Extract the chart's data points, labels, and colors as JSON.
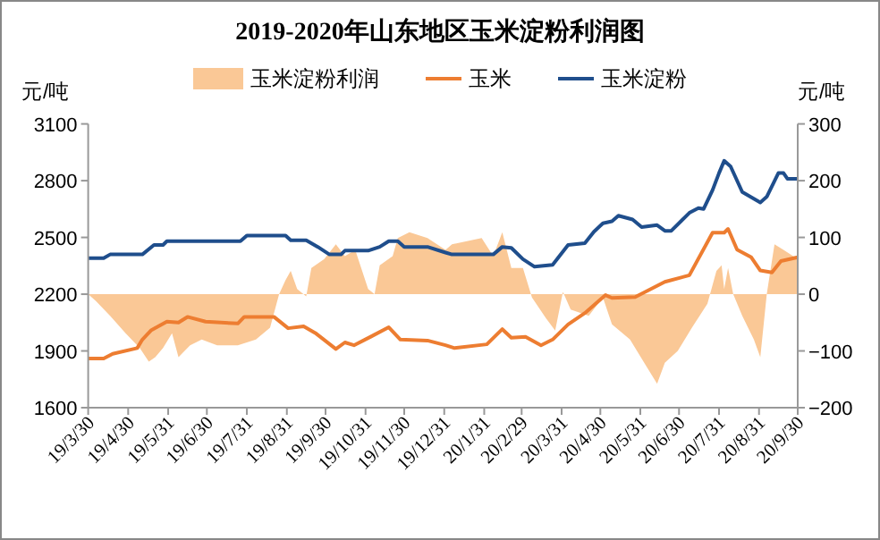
{
  "chart_data": {
    "type": "line",
    "title": "2019-2020年山东地区玉米淀粉利润图",
    "ylabel": "元/吨",
    "y2label": "元/吨",
    "legend": "top",
    "grid": false,
    "xlim": [
      "2019-03-30",
      "2020-09-30"
    ],
    "xticks": [
      {
        "value": "2019-03-30",
        "label": "19/3/30"
      },
      {
        "value": "2019-04-30",
        "label": "19/4/30"
      },
      {
        "value": "2019-05-31",
        "label": "19/5/31"
      },
      {
        "value": "2019-06-30",
        "label": "19/6/30"
      },
      {
        "value": "2019-07-31",
        "label": "19/7/31"
      },
      {
        "value": "2019-08-31",
        "label": "19/8/31"
      },
      {
        "value": "2019-09-30",
        "label": "19/9/30"
      },
      {
        "value": "2019-10-31",
        "label": "19/10/31"
      },
      {
        "value": "2019-11-30",
        "label": "19/11/30"
      },
      {
        "value": "2019-12-31",
        "label": "19/12/31"
      },
      {
        "value": "2020-01-31",
        "label": "20/1/31"
      },
      {
        "value": "2020-02-29",
        "label": "20/2/29"
      },
      {
        "value": "2020-03-31",
        "label": "20/3/31"
      },
      {
        "value": "2020-04-30",
        "label": "20/4/30"
      },
      {
        "value": "2020-05-31",
        "label": "20/5/31"
      },
      {
        "value": "2020-06-30",
        "label": "20/6/30"
      },
      {
        "value": "2020-07-31",
        "label": "20/7/31"
      },
      {
        "value": "2020-08-31",
        "label": "20/8/31"
      },
      {
        "value": "2020-09-30",
        "label": "20/9/30"
      }
    ],
    "ylim": [
      1600,
      3100
    ],
    "yticks": [
      1600,
      1900,
      2200,
      2500,
      2800,
      3100
    ],
    "y2lim": [
      -200,
      300
    ],
    "y2ticks": [
      -200,
      -100,
      0,
      100,
      200,
      300
    ],
    "series": [
      {
        "name": "玉米淀粉利润",
        "type": "area",
        "axis": "y2",
        "color": "#fac896",
        "x": [
          "2019-03-30",
          "2019-04-05",
          "2019-04-16",
          "2019-04-28",
          "2019-05-09",
          "2019-05-16",
          "2019-05-21",
          "2019-05-27",
          "2019-06-03",
          "2019-06-08",
          "2019-06-17",
          "2019-06-26",
          "2019-07-08",
          "2019-07-24",
          "2019-08-07",
          "2019-08-18",
          "2019-08-25",
          "2019-08-30",
          "2019-09-03",
          "2019-09-08",
          "2019-09-15",
          "2019-09-19",
          "2019-09-29",
          "2019-10-08",
          "2019-10-15",
          "2019-10-23",
          "2019-11-02",
          "2019-11-07",
          "2019-11-11",
          "2019-11-21",
          "2019-11-25",
          "2019-12-04",
          "2019-12-18",
          "2020-01-01",
          "2020-01-06",
          "2020-01-29",
          "2020-02-07",
          "2020-02-14",
          "2020-02-21",
          "2020-03-01",
          "2020-03-08",
          "2020-03-19",
          "2020-03-26",
          "2020-04-01",
          "2020-04-07",
          "2020-04-21",
          "2020-05-02",
          "2020-05-09",
          "2020-05-23",
          "2020-06-03",
          "2020-06-13",
          "2020-06-19",
          "2020-06-29",
          "2020-07-10",
          "2020-07-22",
          "2020-07-29",
          "2020-08-02",
          "2020-08-04",
          "2020-08-07",
          "2020-08-11",
          "2020-08-18",
          "2020-08-27",
          "2020-09-01",
          "2020-09-06",
          "2020-09-12",
          "2020-09-19",
          "2020-09-30"
        ],
        "values": [
          0,
          -12,
          -38,
          -69,
          -95,
          -119,
          -111,
          -95,
          -69,
          -111,
          -90,
          -80,
          -90,
          -90,
          -80,
          -59,
          0,
          25,
          41,
          9,
          -4,
          46,
          62,
          88,
          67,
          78,
          9,
          0,
          51,
          67,
          99,
          109,
          99,
          78,
          88,
          99,
          67,
          109,
          46,
          46,
          -6,
          -43,
          -64,
          4,
          -27,
          -38,
          -6,
          -53,
          -80,
          -121,
          -158,
          -121,
          -100,
          -59,
          -17,
          41,
          51,
          9,
          46,
          0,
          -38,
          -80,
          -111,
          0,
          88,
          78,
          62
        ]
      },
      {
        "name": "玉米",
        "type": "line",
        "color": "#ed7d31",
        "x": [
          "2019-03-30",
          "2019-04-11",
          "2019-04-18",
          "2019-05-07",
          "2019-05-11",
          "2019-05-18",
          "2019-05-30",
          "2019-06-08",
          "2019-06-15",
          "2019-06-29",
          "2019-07-24",
          "2019-07-29",
          "2019-08-21",
          "2019-09-01",
          "2019-09-13",
          "2019-09-22",
          "2019-10-08",
          "2019-10-15",
          "2019-10-22",
          "2019-11-04",
          "2019-11-18",
          "2019-11-27",
          "2019-12-18",
          "2020-01-01",
          "2020-01-08",
          "2020-02-02",
          "2020-02-14",
          "2020-02-21",
          "2020-03-03",
          "2020-03-15",
          "2020-03-24",
          "2020-04-05",
          "2020-04-18",
          "2020-05-04",
          "2020-05-09",
          "2020-05-27",
          "2020-06-19",
          "2020-07-08",
          "2020-07-26",
          "2020-08-04",
          "2020-08-07",
          "2020-08-14",
          "2020-08-25",
          "2020-09-01",
          "2020-09-10",
          "2020-09-17",
          "2020-09-30"
        ],
        "values": [
          1860,
          1860,
          1885,
          1915,
          1960,
          2010,
          2055,
          2050,
          2080,
          2055,
          2045,
          2080,
          2080,
          2020,
          2030,
          1995,
          1910,
          1945,
          1930,
          1975,
          2025,
          1960,
          1955,
          1930,
          1915,
          1935,
          2015,
          1970,
          1975,
          1930,
          1960,
          2040,
          2100,
          2195,
          2180,
          2185,
          2265,
          2300,
          2525,
          2525,
          2545,
          2435,
          2395,
          2325,
          2315,
          2375,
          2395
        ]
      },
      {
        "name": "玉米淀粉",
        "type": "line",
        "color": "#1f4e8c",
        "x": [
          "2019-03-30",
          "2019-04-11",
          "2019-04-16",
          "2019-05-11",
          "2019-05-20",
          "2019-05-27",
          "2019-05-30",
          "2019-07-26",
          "2019-07-31",
          "2019-08-30",
          "2019-09-03",
          "2019-09-15",
          "2019-09-24",
          "2019-10-03",
          "2019-10-12",
          "2019-10-15",
          "2019-11-02",
          "2019-11-11",
          "2019-11-18",
          "2019-11-25",
          "2019-11-30",
          "2019-12-18",
          "2020-01-01",
          "2020-01-06",
          "2020-02-07",
          "2020-02-14",
          "2020-02-21",
          "2020-03-01",
          "2020-03-10",
          "2020-03-24",
          "2020-04-05",
          "2020-04-18",
          "2020-04-25",
          "2020-05-02",
          "2020-05-09",
          "2020-05-14",
          "2020-05-25",
          "2020-06-01",
          "2020-06-13",
          "2020-06-19",
          "2020-06-24",
          "2020-07-08",
          "2020-07-15",
          "2020-07-19",
          "2020-07-26",
          "2020-07-31",
          "2020-08-04",
          "2020-08-09",
          "2020-08-18",
          "2020-09-01",
          "2020-09-06",
          "2020-09-15",
          "2020-09-19",
          "2020-09-22",
          "2020-09-30"
        ],
        "values": [
          2390,
          2390,
          2410,
          2410,
          2460,
          2460,
          2480,
          2480,
          2510,
          2510,
          2485,
          2485,
          2450,
          2410,
          2410,
          2430,
          2430,
          2450,
          2480,
          2480,
          2450,
          2450,
          2420,
          2410,
          2410,
          2450,
          2445,
          2385,
          2345,
          2355,
          2460,
          2470,
          2530,
          2575,
          2585,
          2615,
          2595,
          2555,
          2565,
          2535,
          2535,
          2630,
          2655,
          2650,
          2750,
          2840,
          2905,
          2875,
          2740,
          2685,
          2715,
          2840,
          2840,
          2810,
          2810
        ]
      }
    ]
  }
}
